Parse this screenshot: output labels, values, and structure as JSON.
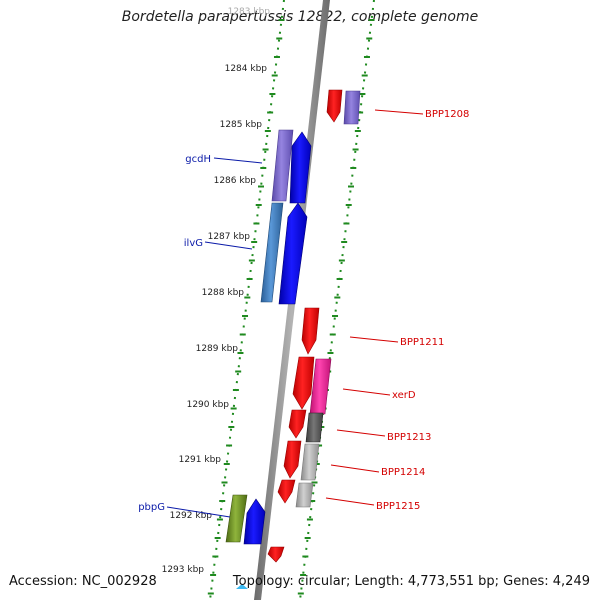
{
  "title": "Bordetella parapertussis 12822, complete genome",
  "footer": {
    "accession": "Accession: NC_002928",
    "topology": "Topology: circular; Length: 4,773,551 bp; Genes: 4,249"
  },
  "scale": {
    "unit": "kbp",
    "tick_labels": [
      "1283 kbp",
      "1284 kbp",
      "1285 kbp",
      "1286 kbp",
      "1287 kbp",
      "1288 kbp",
      "1289 kbp",
      "1290 kbp",
      "1291 kbp",
      "1292 kbp",
      "1293 kbp"
    ]
  },
  "gene_labels": {
    "gcdH": "gcdH",
    "ilvG": "ilvG",
    "pbpG": "pbpG",
    "BPP1208": "BPP1208",
    "BPP1211": "BPP1211",
    "xerD": "xerD",
    "BPP1213": "BPP1213",
    "BPP1214": "BPP1214",
    "BPP1215": "BPP1215"
  },
  "colors": {
    "track_dots": "#1f8a1f",
    "backbone": "#8c8c8c",
    "label_blue": "#0a1aa8",
    "label_red": "#d40000",
    "gene_red": "#f00000",
    "gene_blue": "#0000ee",
    "gene_purple": "#7a66cc",
    "gene_steelblue": "#3a78b8",
    "gene_magenta": "#ee2299",
    "gene_darkgray": "#555555",
    "gene_lightgray": "#b0b0b0",
    "gene_olive": "#6b8f22"
  }
}
